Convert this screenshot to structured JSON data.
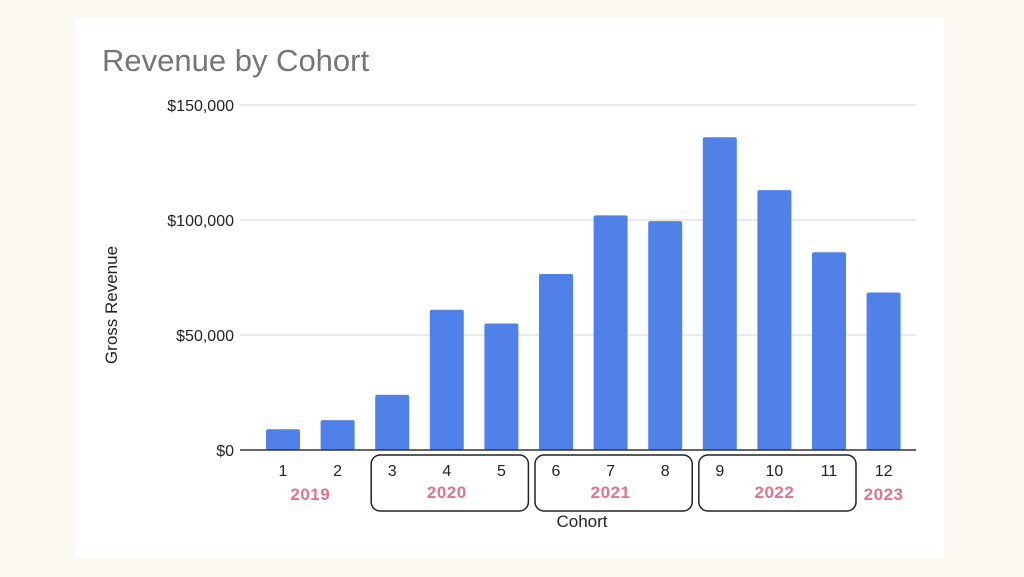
{
  "chart_data": {
    "type": "bar",
    "title": "Revenue by Cohort",
    "xlabel": "Cohort",
    "ylabel": "Gross Revenue",
    "categories": [
      "1",
      "2",
      "3",
      "4",
      "5",
      "6",
      "7",
      "8",
      "9",
      "10",
      "11",
      "12"
    ],
    "values": [
      9000,
      13000,
      24000,
      61000,
      55000,
      76500,
      102000,
      99500,
      136000,
      113000,
      86000,
      68500
    ],
    "ylim": [
      0,
      150000
    ],
    "yticks": [
      {
        "value": 0,
        "label": "$0"
      },
      {
        "value": 50000,
        "label": "$50,000"
      },
      {
        "value": 100000,
        "label": "$100,000"
      },
      {
        "value": 150000,
        "label": "$150,000"
      }
    ],
    "grid": true,
    "bar_color": "#4f81e9",
    "year_groups": [
      {
        "label": "2019",
        "from": 1,
        "to": 2,
        "boxed": false
      },
      {
        "label": "2020",
        "from": 3,
        "to": 5,
        "boxed": true
      },
      {
        "label": "2021",
        "from": 6,
        "to": 8,
        "boxed": true
      },
      {
        "label": "2022",
        "from": 9,
        "to": 11,
        "boxed": true
      },
      {
        "label": "2023",
        "from": 12,
        "to": 12,
        "boxed": false
      }
    ],
    "group_label_color": "#e0738d"
  }
}
